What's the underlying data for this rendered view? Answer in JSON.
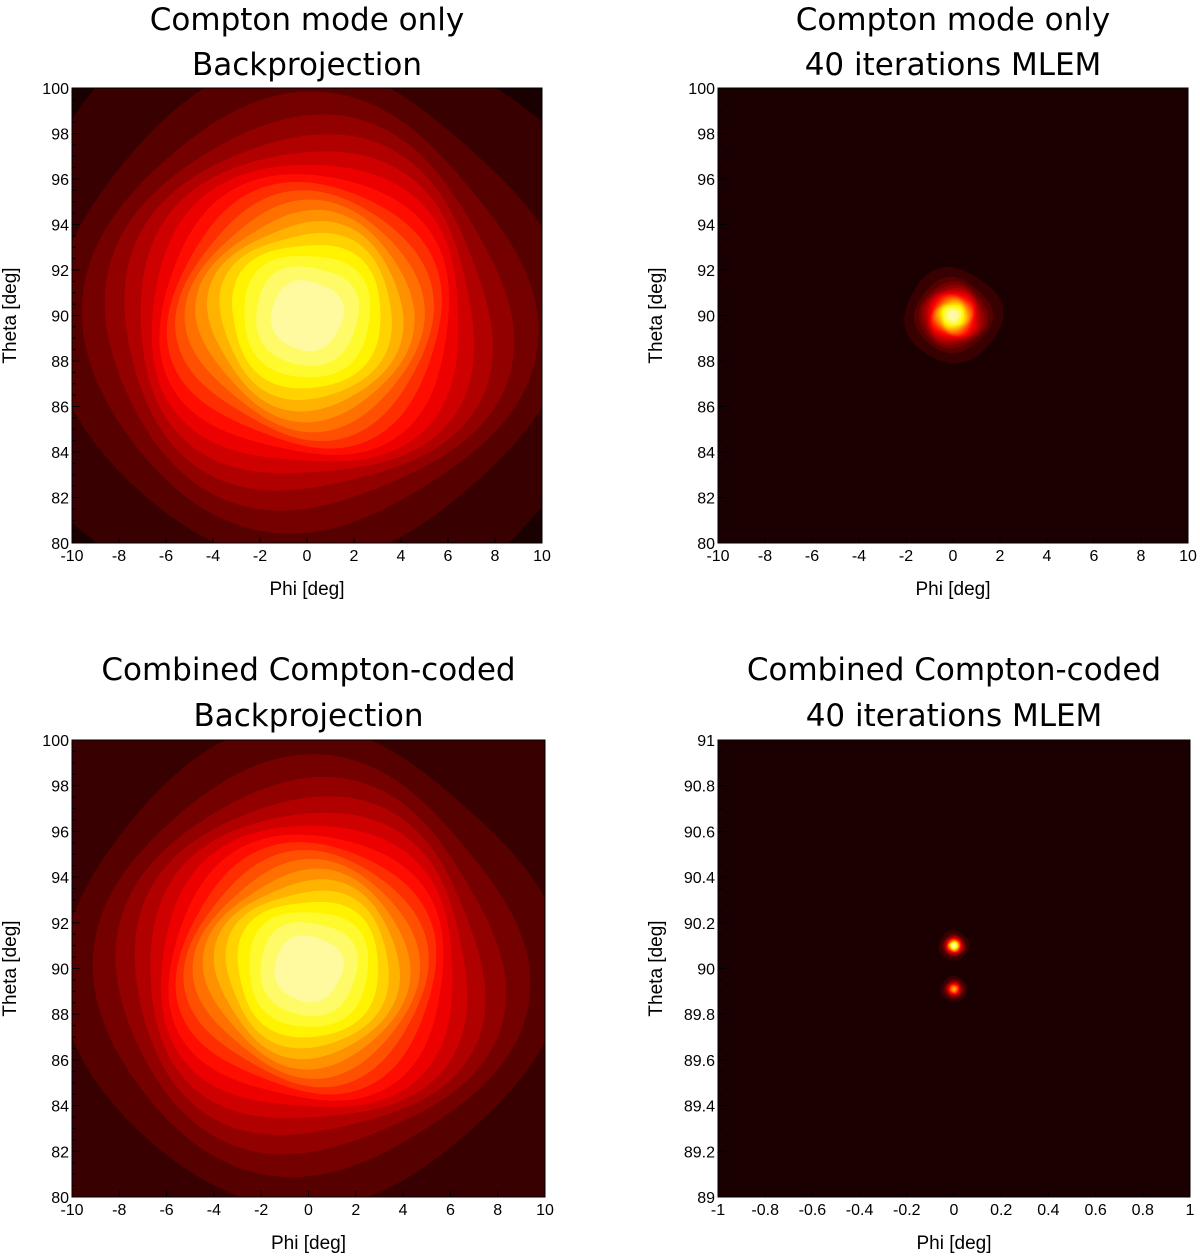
{
  "chart_data": [
    {
      "type": "heatmap",
      "title": [
        "Compton mode only",
        "Backprojection"
      ],
      "xlabel": "Phi [deg]",
      "ylabel": "Theta [deg]",
      "xlim": [
        -10,
        10
      ],
      "ylim": [
        80,
        100
      ],
      "xticks": [
        "-10",
        "-8",
        "-6",
        "-4",
        "-2",
        "0",
        "2",
        "4",
        "6",
        "8",
        "10"
      ],
      "yticks": [
        "80",
        "82",
        "84",
        "86",
        "88",
        "90",
        "92",
        "94",
        "96",
        "98",
        "100"
      ],
      "colormap": "hot",
      "levels": 18,
      "background": 0.04,
      "peaks": [
        {
          "phi": 0,
          "theta": 90,
          "sigma": 4.6,
          "amplitude": 1.0
        }
      ]
    },
    {
      "type": "heatmap",
      "title": [
        "Compton mode only",
        "40 iterations MLEM"
      ],
      "xlabel": "Phi [deg]",
      "ylabel": "Theta [deg]",
      "xlim": [
        -10,
        10
      ],
      "ylim": [
        80,
        100
      ],
      "xticks": [
        "-10",
        "-8",
        "-6",
        "-4",
        "-2",
        "0",
        "2",
        "4",
        "6",
        "8",
        "10"
      ],
      "yticks": [
        "80",
        "82",
        "84",
        "86",
        "88",
        "90",
        "92",
        "94",
        "96",
        "98",
        "100"
      ],
      "colormap": "hot",
      "levels": 18,
      "background": 0.04,
      "peaks": [
        {
          "phi": 0,
          "theta": 90,
          "sigma": 0.7,
          "amplitude": 1.0
        }
      ]
    },
    {
      "type": "heatmap",
      "title": [
        "Combined Compton-coded",
        "Backprojection"
      ],
      "xlabel": "Phi [deg]",
      "ylabel": "Theta [deg]",
      "xlim": [
        -10,
        10
      ],
      "ylim": [
        80,
        100
      ],
      "xticks": [
        "-10",
        "-8",
        "-6",
        "-4",
        "-2",
        "0",
        "2",
        "4",
        "6",
        "8",
        "10"
      ],
      "yticks": [
        "80",
        "82",
        "84",
        "86",
        "88",
        "90",
        "92",
        "94",
        "96",
        "98",
        "100"
      ],
      "colormap": "hot",
      "levels": 18,
      "background": 0.05,
      "peaks": [
        {
          "phi": 0,
          "theta": 90,
          "sigma": 4.3,
          "amplitude": 1.0
        }
      ]
    },
    {
      "type": "heatmap",
      "title": [
        "Combined Compton-coded",
        "40 iterations MLEM"
      ],
      "xlabel": "Phi [deg]",
      "ylabel": "Theta [deg]",
      "xlim": [
        -1,
        1
      ],
      "ylim": [
        89,
        91
      ],
      "xticks": [
        "-1",
        "-0.8",
        "-0.6",
        "-0.4",
        "-0.2",
        "0",
        "0.2",
        "0.4",
        "0.6",
        "0.8",
        "1"
      ],
      "yticks": [
        "89",
        "89.2",
        "89.4",
        "89.6",
        "89.8",
        "90",
        "90.2",
        "90.4",
        "90.6",
        "90.8",
        "91"
      ],
      "colormap": "hot",
      "levels": 18,
      "background": 0.04,
      "peaks": [
        {
          "phi": 0,
          "theta": 90.1,
          "sigma": 0.022,
          "amplitude": 1.0
        },
        {
          "phi": 0,
          "theta": 89.91,
          "sigma": 0.02,
          "amplitude": 0.7
        }
      ]
    }
  ]
}
